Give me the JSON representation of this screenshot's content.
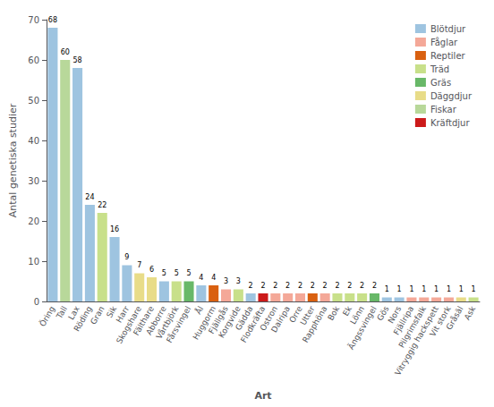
{
  "chart_data": {
    "type": "bar",
    "xlabel": "Art",
    "ylabel": "Antal genetiska studier",
    "categories": [
      "Öring",
      "Tall",
      "Lax",
      "Röding",
      "Gran",
      "Sik",
      "Harr",
      "Skogshare",
      "Fälthare",
      "Abborre",
      "Vårtbjörk",
      "Fårsvingel",
      "Ål",
      "Huggorm",
      "Fjällgås",
      "Korgvide",
      "Gädda",
      "Flodkräfta",
      "Ostron",
      "Dalripa",
      "Orre",
      "Utter",
      "Rapphöna",
      "Bok",
      "Ek",
      "Lönn",
      "Ängssvingel",
      "Gös",
      "Nors",
      "Fjällripa",
      "Pilgrimsfalk",
      "Vitryggig hackspett",
      "Vit stork",
      "Gråsäl",
      "Ask"
    ],
    "series": [
      {
        "name": "Blötdjur",
        "color": "#9ec4e0",
        "values": [
          68,
          null,
          58,
          24,
          null,
          16,
          9,
          null,
          null,
          5,
          null,
          null,
          4,
          null,
          null,
          null,
          2,
          null,
          null,
          null,
          null,
          null,
          null,
          null,
          null,
          null,
          null,
          1,
          1,
          null,
          null,
          null,
          null,
          null,
          null
        ]
      },
      {
        "name": "Fåglar",
        "color": "#f4a898",
        "values": [
          null,
          null,
          null,
          null,
          null,
          null,
          null,
          null,
          null,
          null,
          null,
          null,
          null,
          null,
          3,
          null,
          null,
          null,
          2,
          2,
          2,
          null,
          2,
          null,
          null,
          null,
          null,
          null,
          null,
          1,
          1,
          1,
          1,
          null,
          null
        ]
      },
      {
        "name": "Reptiler",
        "color": "#d96010",
        "values": [
          null,
          null,
          null,
          null,
          null,
          null,
          null,
          null,
          null,
          null,
          null,
          null,
          null,
          4,
          null,
          null,
          null,
          null,
          null,
          null,
          null,
          2,
          null,
          null,
          null,
          null,
          null,
          null,
          null,
          null,
          null,
          null,
          null,
          null,
          null
        ]
      },
      {
        "name": "Träd",
        "color": "#c8e08a",
        "values": [
          null,
          null,
          null,
          null,
          22,
          null,
          null,
          null,
          null,
          null,
          5,
          null,
          null,
          null,
          null,
          3,
          null,
          null,
          null,
          null,
          null,
          null,
          null,
          2,
          2,
          2,
          null,
          null,
          null,
          null,
          null,
          null,
          null,
          null,
          1
        ]
      },
      {
        "name": "Gräs",
        "color": "#68b868",
        "values": [
          null,
          null,
          null,
          null,
          null,
          null,
          null,
          null,
          null,
          null,
          null,
          5,
          null,
          null,
          null,
          null,
          null,
          null,
          null,
          null,
          null,
          null,
          null,
          null,
          null,
          null,
          2,
          null,
          null,
          null,
          null,
          null,
          null,
          null,
          null
        ]
      },
      {
        "name": "Däggdjur",
        "color": "#e8dc88",
        "values": [
          null,
          null,
          null,
          null,
          null,
          null,
          null,
          7,
          6,
          null,
          null,
          null,
          null,
          null,
          null,
          null,
          null,
          null,
          null,
          null,
          null,
          null,
          null,
          null,
          null,
          null,
          null,
          null,
          null,
          null,
          null,
          null,
          null,
          1,
          null
        ]
      },
      {
        "name": "Fiskar",
        "color": "#b8d89a",
        "values": [
          null,
          60,
          null,
          null,
          null,
          null,
          null,
          null,
          null,
          null,
          null,
          null,
          null,
          null,
          null,
          null,
          null,
          null,
          null,
          null,
          null,
          null,
          null,
          null,
          null,
          null,
          null,
          null,
          null,
          null,
          null,
          null,
          null,
          null,
          null
        ]
      },
      {
        "name": "Kräftdjur",
        "color": "#cc1a1a",
        "values": [
          null,
          null,
          null,
          null,
          null,
          null,
          null,
          null,
          null,
          null,
          null,
          null,
          null,
          null,
          null,
          null,
          null,
          2,
          null,
          null,
          null,
          null,
          null,
          null,
          null,
          null,
          null,
          null,
          null,
          null,
          null,
          null,
          null,
          null,
          null
        ]
      }
    ],
    "ylim": [
      0,
      70
    ],
    "yticks": [
      0,
      10,
      20,
      30,
      40,
      50,
      60,
      70
    ],
    "grid": false,
    "legend": "upper right",
    "data_labels": true
  }
}
